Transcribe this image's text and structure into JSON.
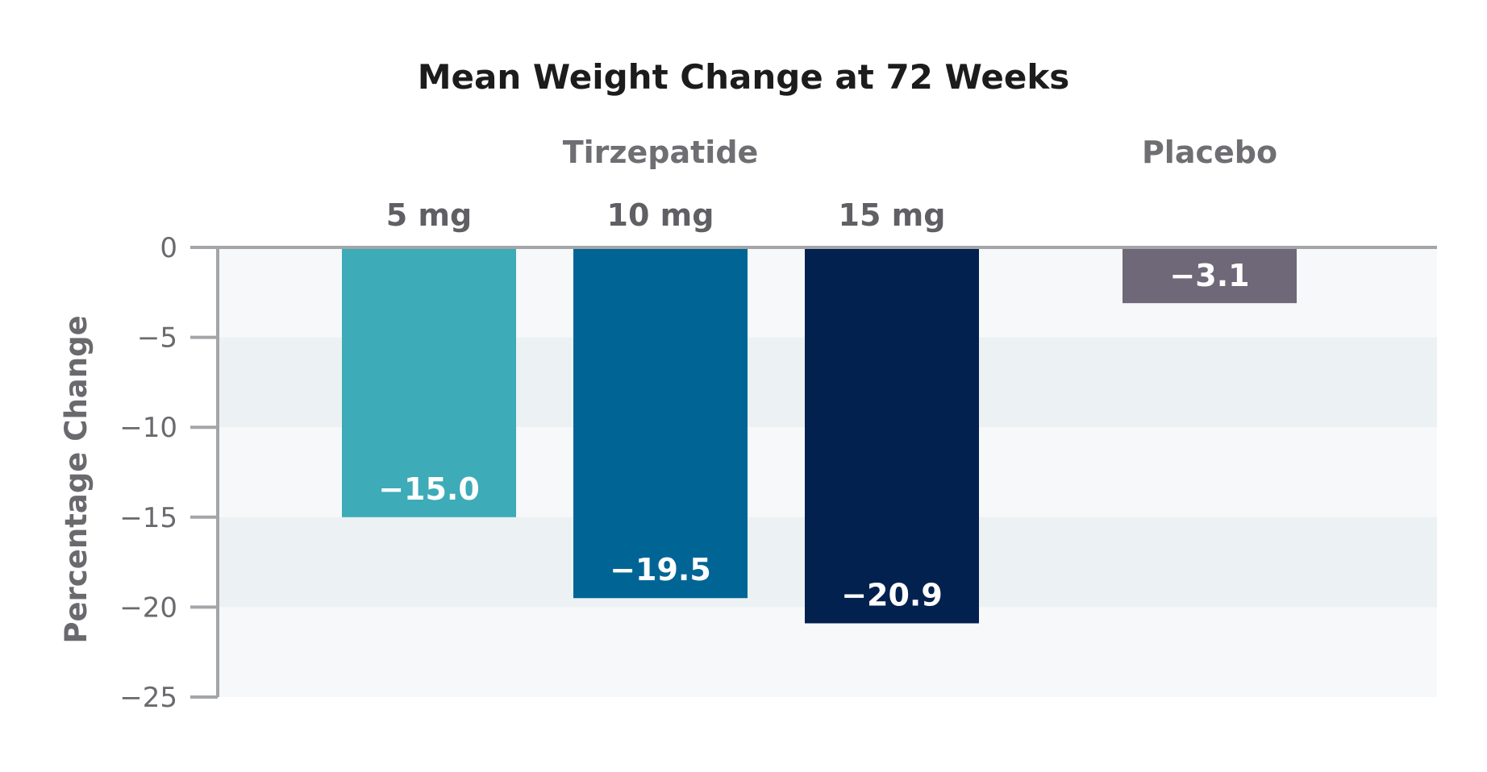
{
  "chart_data": {
    "type": "bar",
    "title": "Mean Weight Change at 72 Weeks",
    "ylabel": "Percentage Change",
    "xlabel": "",
    "ylim": [
      -25,
      0
    ],
    "yticks": [
      0,
      -5,
      -10,
      -15,
      -20,
      -25
    ],
    "ytick_labels": [
      "0",
      "−5",
      "−10",
      "−15",
      "−20",
      "−25"
    ],
    "grid": "alternating horizontal bands",
    "groups": [
      {
        "name": "Tirzepatide",
        "categories": [
          "5 mg",
          "10 mg",
          "15 mg"
        ]
      },
      {
        "name": "Placebo",
        "categories": [
          ""
        ]
      }
    ],
    "categories": [
      "5 mg",
      "10 mg",
      "15 mg",
      ""
    ],
    "values": [
      -15.0,
      -19.5,
      -20.9,
      -3.1
    ],
    "value_labels": [
      "−15.0",
      "−19.5",
      "−20.9",
      "−3.1"
    ],
    "colors": [
      "#3dabb8",
      "#006595",
      "#03214f",
      "#6f6878"
    ],
    "band_colors": [
      "#f6f8fa",
      "#ecf1f4"
    ],
    "axis_color": "#a3a5a8"
  }
}
